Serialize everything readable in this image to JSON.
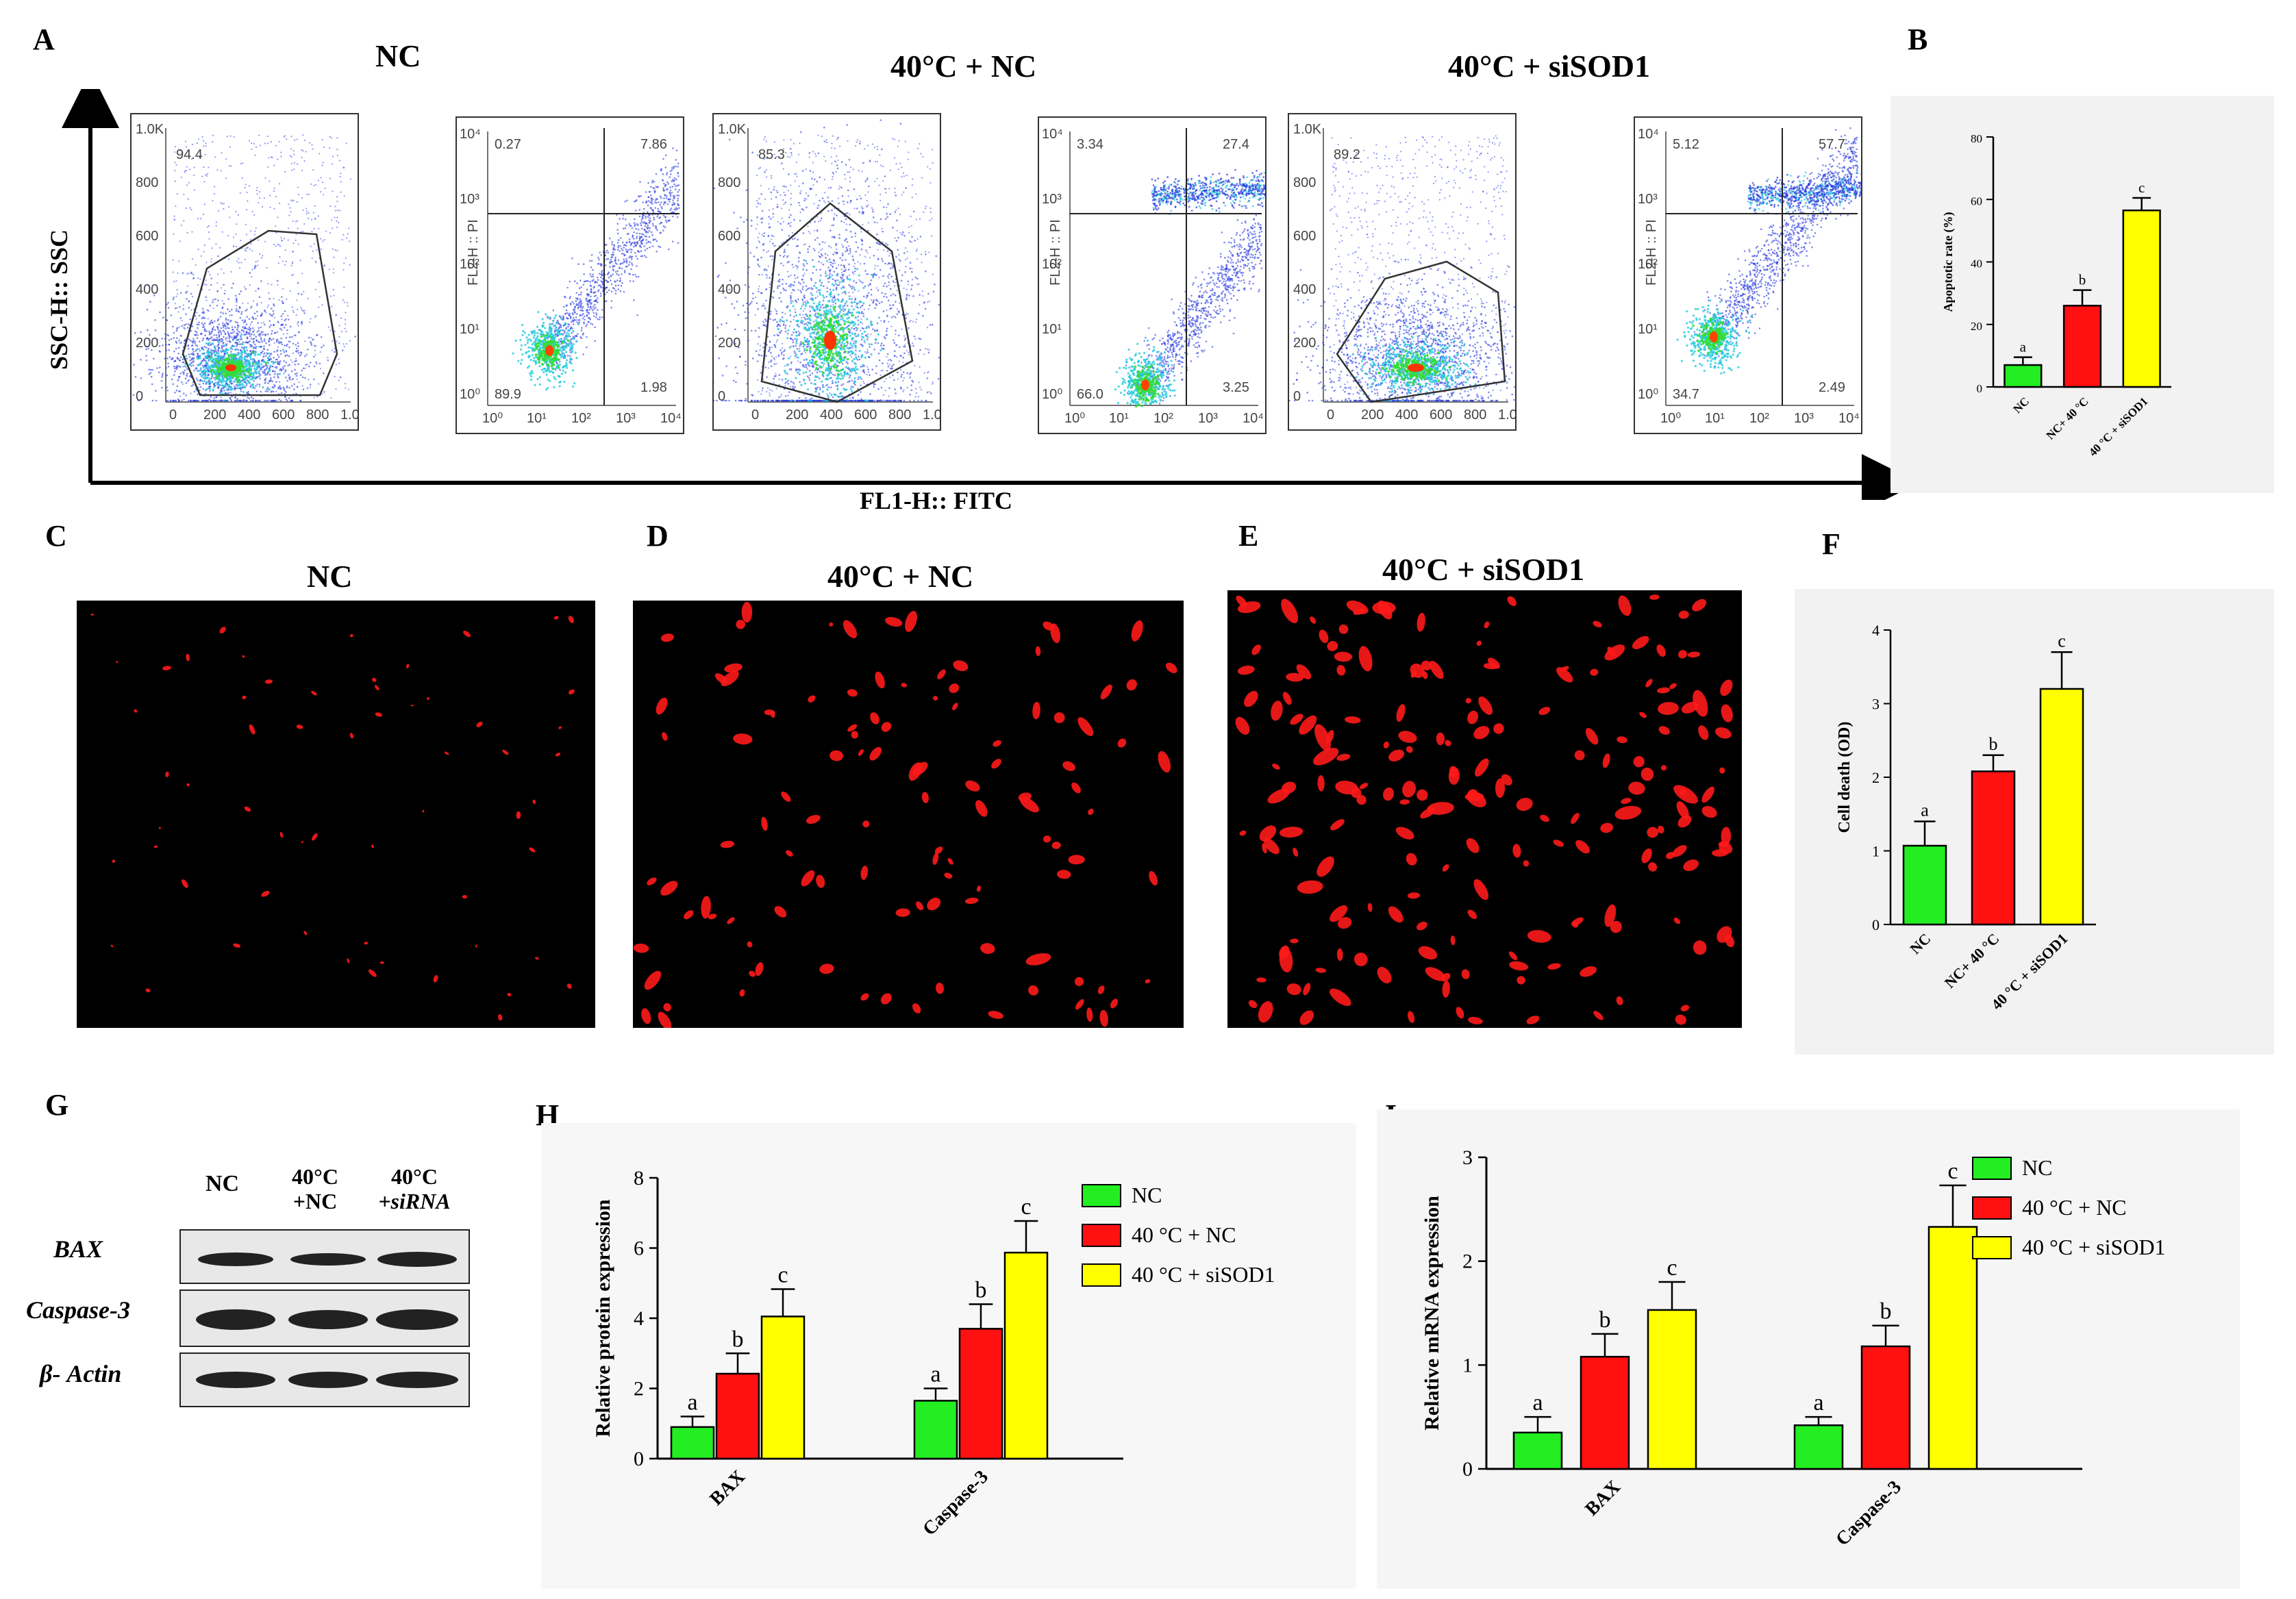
{
  "panel_letters": {
    "A": "A",
    "B": "B",
    "C": "C",
    "D": "D",
    "E": "E",
    "F": "F",
    "G": "G",
    "H": "H",
    "I": "I"
  },
  "flow": {
    "titles": [
      "NC",
      "40°C + NC",
      "40°C + siSOD1"
    ],
    "y_axis_label": "SSC-H:: SSC",
    "x_axis_label": "FL1-H:: FITC",
    "scatter_ticks_y": [
      "1.0K",
      "800",
      "600",
      "400",
      "200",
      "0"
    ],
    "scatter_ticks_x": [
      "0",
      "200",
      "400",
      "600",
      "800",
      "1.0K"
    ],
    "quad_ticks": [
      "10⁰",
      "10¹",
      "10²",
      "10³",
      "10⁴"
    ],
    "quad_ylabel": "FL2-H :: PI",
    "scatter_gates": [
      "94.4",
      "85.3",
      "89.2"
    ],
    "quadrants": [
      {
        "ul": "0.27",
        "ur": "7.86",
        "ll": "89.9",
        "lr": "1.98"
      },
      {
        "ul": "3.34",
        "ur": "27.4",
        "ll": "66.0",
        "lr": "3.25"
      },
      {
        "ul": "5.12",
        "ur": "57.7",
        "ll": "34.7",
        "lr": "2.49"
      }
    ]
  },
  "fluor": {
    "titles": [
      "NC",
      "40°C + NC",
      "40°C + siSOD1"
    ]
  },
  "western": {
    "lanes": [
      [
        "NC",
        ""
      ],
      [
        "40°C",
        "+NC"
      ],
      [
        "40°C",
        "+siRNA"
      ]
    ],
    "rows": [
      "BAX",
      "Caspase-3",
      "β- Actin"
    ]
  },
  "chart_data": [
    {
      "id": "B",
      "type": "bar",
      "title": "",
      "ylabel": "Apoptotic rate (%)",
      "ylim": [
        0,
        80
      ],
      "yticks": [
        0,
        20,
        40,
        60,
        80
      ],
      "categories": [
        "NC",
        "NC+ 40 °C",
        "40 °C + siSOD1"
      ],
      "values": [
        7,
        26,
        56.5
      ],
      "errors": [
        2.5,
        5,
        4
      ],
      "letters": [
        "a",
        "b",
        "c"
      ],
      "colors": [
        "#22ee22",
        "#ff1111",
        "#ffff00"
      ]
    },
    {
      "id": "F",
      "type": "bar",
      "title": "",
      "ylabel": "Cell death (OD)",
      "ylim": [
        0,
        4
      ],
      "yticks": [
        0,
        1,
        2,
        3,
        4
      ],
      "categories": [
        "NC",
        "NC+ 40 °C",
        "40 °C + siSOD1"
      ],
      "values": [
        1.07,
        2.08,
        3.2
      ],
      "errors": [
        0.33,
        0.22,
        0.5
      ],
      "letters": [
        "a",
        "b",
        "c"
      ],
      "colors": [
        "#22ee22",
        "#ff1111",
        "#ffff00"
      ]
    },
    {
      "id": "H",
      "type": "bar",
      "ylabel": "Relative protein expression",
      "ylim": [
        0,
        8
      ],
      "yticks": [
        0,
        2,
        4,
        6,
        8
      ],
      "categories": [
        "BAX",
        "Caspase-3"
      ],
      "series": [
        {
          "name": "NC",
          "values": [
            0.9,
            1.65
          ],
          "errors": [
            0.3,
            0.35
          ],
          "letters": [
            "a",
            "a"
          ],
          "color": "#22ee22"
        },
        {
          "name": "40 °C + NC",
          "values": [
            2.42,
            3.7
          ],
          "errors": [
            0.58,
            0.7
          ],
          "letters": [
            "b",
            "b"
          ],
          "color": "#ff1111"
        },
        {
          "name": "40 °C + siSOD1",
          "values": [
            4.05,
            5.87
          ],
          "errors": [
            0.78,
            0.9
          ],
          "letters": [
            "c",
            "c"
          ],
          "color": "#ffff00"
        }
      ],
      "legend_position": "top-right"
    },
    {
      "id": "I",
      "type": "bar",
      "ylabel": "Relative mRNA expression",
      "ylim": [
        0,
        3
      ],
      "yticks": [
        0,
        1,
        2,
        3
      ],
      "categories": [
        "BAX",
        "Caspase-3"
      ],
      "series": [
        {
          "name": "NC",
          "values": [
            0.35,
            0.42
          ],
          "errors": [
            0.15,
            0.08
          ],
          "letters": [
            "a",
            "a"
          ],
          "color": "#22ee22"
        },
        {
          "name": "40 °C + NC",
          "values": [
            1.08,
            1.18
          ],
          "errors": [
            0.22,
            0.2
          ],
          "letters": [
            "b",
            "b"
          ],
          "color": "#ff1111"
        },
        {
          "name": "40 °C + siSOD1",
          "values": [
            1.53,
            2.33
          ],
          "errors": [
            0.27,
            0.4
          ],
          "letters": [
            "c",
            "c"
          ],
          "color": "#ffff00"
        }
      ],
      "legend_position": "top-right"
    }
  ]
}
